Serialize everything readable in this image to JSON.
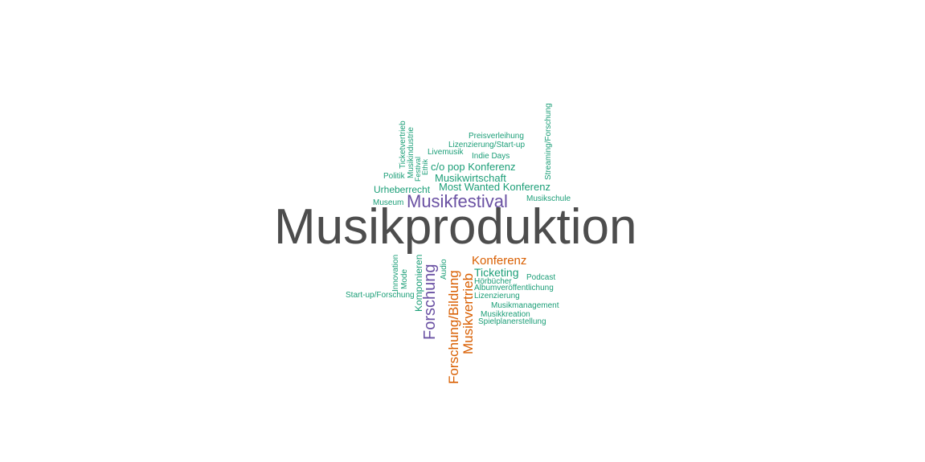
{
  "colors": {
    "gray": "#4d4d4d",
    "purple": "#6a51a3",
    "orange": "#d95f02",
    "green": "#1b9e77"
  },
  "words": [
    "Musikproduktion",
    "Musikfestival",
    "Forschung",
    "Forschung/Bildung",
    "Musikvertrieb",
    "Konferenz",
    "Ticketing",
    "Most Wanted Konferenz",
    "Musikwirtschaft",
    "c/o pop Konferenz",
    "Urheberrecht",
    "Komponieren",
    "Indie Days",
    "Livemusik",
    "Lizenzierung/Start-up",
    "Preisverleihung",
    "Streaming/Forschung",
    "Musikschule",
    "Museum",
    "Politik",
    "Ticketvertrieb",
    "Musikindustrie",
    "Festival",
    "Ethik",
    "Innovation",
    "Mode",
    "Audio",
    "Start-up/Forschung",
    "Podcast",
    "Hörbücher",
    "Albumveröffentlichung",
    "Lizenzierung",
    "Musikmanagement",
    "Musikkreation",
    "Spielplanerstellung"
  ]
}
